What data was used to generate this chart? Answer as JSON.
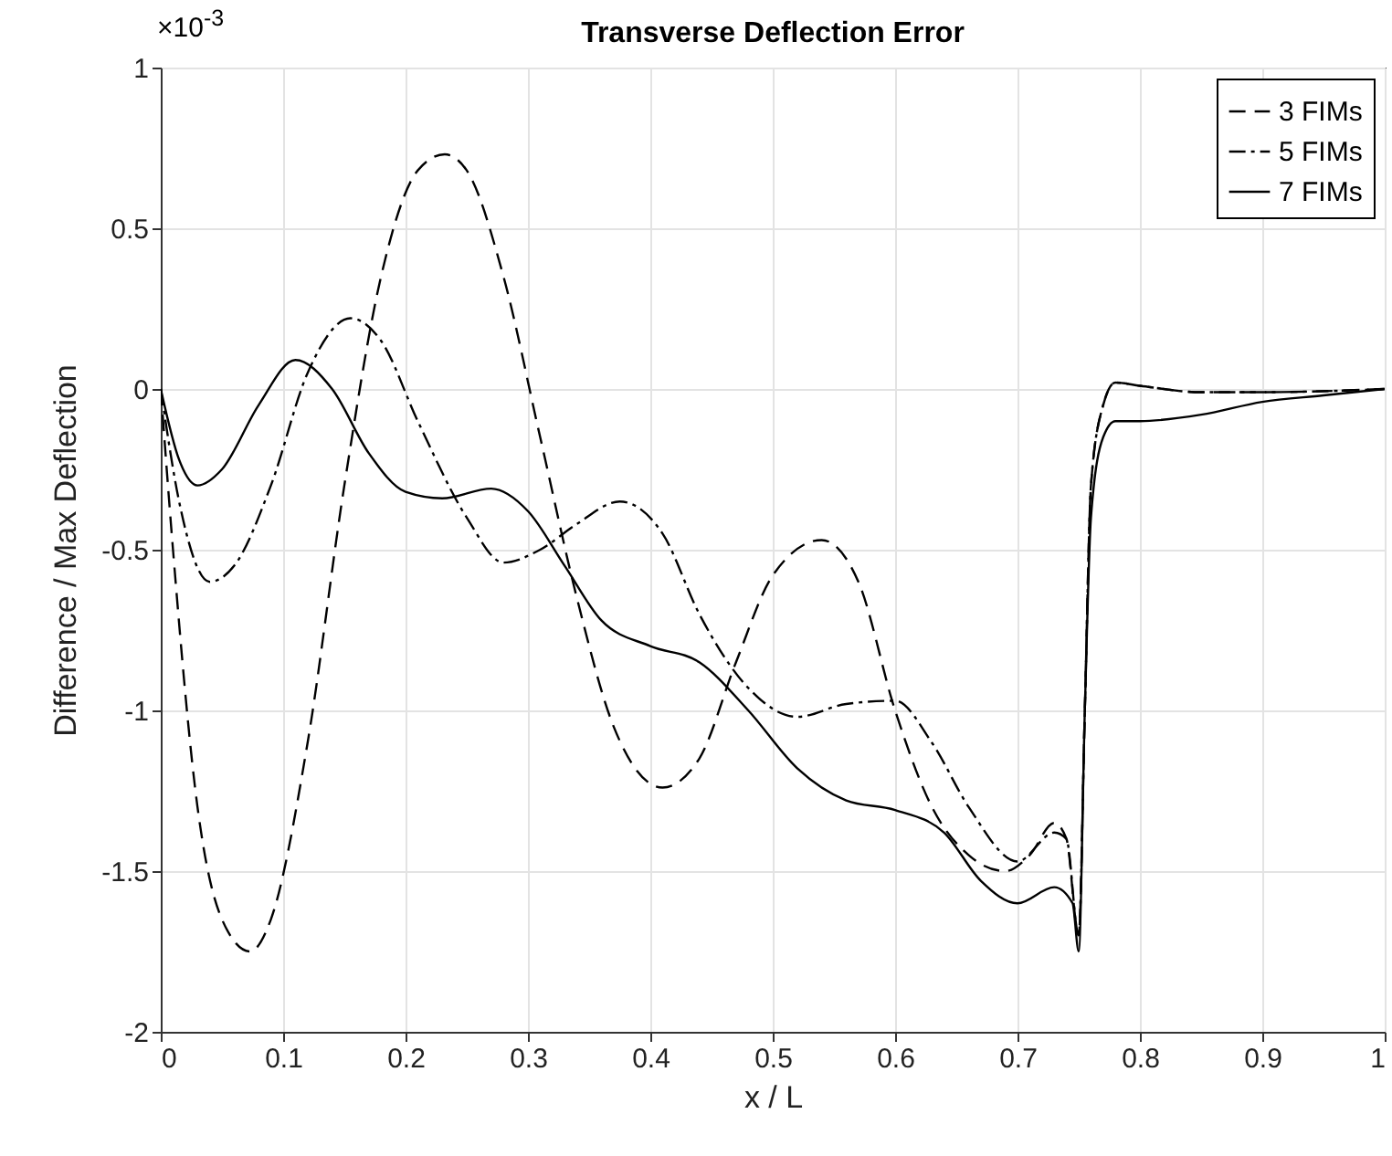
{
  "chart_data": {
    "type": "line",
    "title": "Transverse Deflection Error",
    "xlabel": "x / L",
    "ylabel": "Difference / Max Deflection",
    "annotations": [
      "×10$^{-3}$"
    ],
    "xlim": [
      0,
      1
    ],
    "xticks": [
      0,
      0.1,
      0.2,
      0.3,
      0.4,
      0.5,
      0.6,
      0.7,
      0.8,
      0.9,
      1
    ],
    "ylim": [
      -2,
      1
    ],
    "yticks": [
      -2,
      -1.5,
      -1,
      -0.5,
      0,
      0.5,
      1
    ],
    "grid": true,
    "legend": "top right",
    "series": [
      {
        "name": "3 FIMs",
        "color": "#000000",
        "line_style": "dashed",
        "x": [
          0,
          0.01,
          0.03,
          0.05,
          0.073,
          0.09,
          0.12,
          0.15,
          0.18,
          0.21,
          0.232,
          0.25,
          0.28,
          0.31,
          0.34,
          0.37,
          0.41,
          0.44,
          0.47,
          0.5,
          0.54,
          0.57,
          0.6,
          0.63,
          0.66,
          0.69,
          0.71,
          0.73,
          0.74,
          0.75,
          0.755,
          0.76,
          0.77,
          0.78,
          0.8,
          0.85,
          0.9,
          1
        ],
        "values": [
          0,
          -0.5,
          -1.3,
          -1.65,
          -1.75,
          -1.65,
          -1.1,
          -0.3,
          0.35,
          0.68,
          0.73,
          0.68,
          0.35,
          -0.15,
          -0.65,
          -1.05,
          -1.24,
          -1.15,
          -0.85,
          -0.58,
          -0.47,
          -0.6,
          -1.0,
          -1.3,
          -1.45,
          -1.5,
          -1.45,
          -1.35,
          -1.4,
          -1.7,
          -1.0,
          -0.3,
          -0.05,
          0.02,
          0.01,
          -0.01,
          -0.01,
          0
        ]
      },
      {
        "name": "5 FIMs",
        "color": "#000000",
        "line_style": "dashdot",
        "x": [
          0,
          0.015,
          0.04,
          0.06,
          0.09,
          0.12,
          0.155,
          0.18,
          0.21,
          0.25,
          0.28,
          0.31,
          0.34,
          0.375,
          0.41,
          0.44,
          0.48,
          0.52,
          0.56,
          0.6,
          0.63,
          0.66,
          0.7,
          0.73,
          0.74,
          0.75,
          0.755,
          0.76,
          0.77,
          0.78,
          0.8,
          0.85,
          0.9,
          1
        ],
        "values": [
          0,
          -0.35,
          -0.6,
          -0.55,
          -0.3,
          0.05,
          0.22,
          0.15,
          -0.1,
          -0.4,
          -0.54,
          -0.5,
          -0.42,
          -0.35,
          -0.45,
          -0.7,
          -0.93,
          -1.02,
          -0.98,
          -0.97,
          -1.1,
          -1.3,
          -1.47,
          -1.38,
          -1.4,
          -1.7,
          -1.0,
          -0.3,
          -0.05,
          0.02,
          0.01,
          -0.01,
          -0.01,
          0
        ]
      },
      {
        "name": "7 FIMs",
        "color": "#000000",
        "line_style": "solid",
        "x": [
          0,
          0.015,
          0.03,
          0.05,
          0.08,
          0.11,
          0.14,
          0.17,
          0.2,
          0.23,
          0.27,
          0.3,
          0.33,
          0.36,
          0.4,
          0.44,
          0.48,
          0.52,
          0.56,
          0.6,
          0.64,
          0.67,
          0.7,
          0.73,
          0.745,
          0.75,
          0.755,
          0.76,
          0.77,
          0.78,
          0.8,
          0.85,
          0.9,
          0.95,
          1
        ],
        "values": [
          0,
          -0.22,
          -0.3,
          -0.25,
          -0.05,
          0.09,
          0.0,
          -0.2,
          -0.32,
          -0.34,
          -0.31,
          -0.38,
          -0.55,
          -0.72,
          -0.8,
          -0.85,
          -1.0,
          -1.18,
          -1.28,
          -1.31,
          -1.38,
          -1.53,
          -1.6,
          -1.55,
          -1.6,
          -1.75,
          -1.0,
          -0.4,
          -0.15,
          -0.1,
          -0.1,
          -0.08,
          -0.04,
          -0.02,
          0
        ]
      }
    ]
  }
}
